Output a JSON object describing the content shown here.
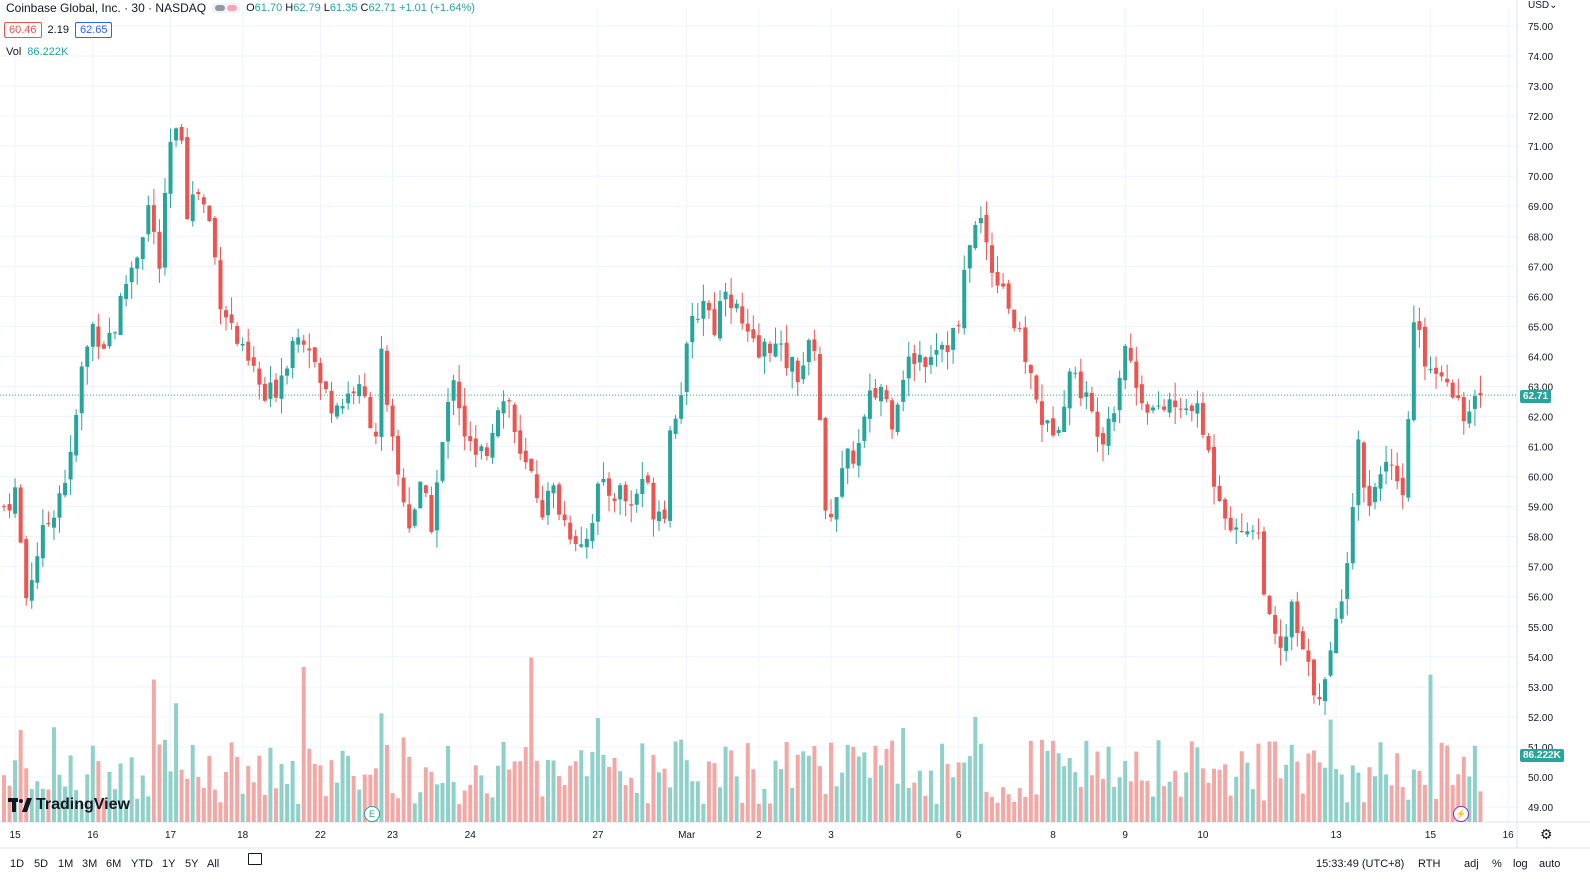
{
  "header": {
    "ticker": "Coinbase Global, Inc. · 30 · NASDAQ",
    "ohlc": {
      "o_label": "O",
      "o": "61.70",
      "h_label": "H",
      "h": "62.79",
      "l_label": "L",
      "l": "61.35",
      "c_label": "C",
      "c": "62.71",
      "change": "+1.01 (+1.64%)"
    },
    "bid": "60.46",
    "spread": "2.19",
    "ask": "62.65",
    "vol_label": "Vol",
    "vol_value": "86.222K"
  },
  "currency": "USD",
  "timeframes": [
    "1D",
    "5D",
    "1M",
    "3M",
    "6M",
    "YTD",
    "1Y",
    "5Y",
    "All"
  ],
  "bottom_right": {
    "clock": "15:33:49 (UTC+8)",
    "session": "RTH",
    "adj": "adj",
    "percent": "%",
    "log": "log",
    "auto": "auto"
  },
  "colors": {
    "up": "#26a69a",
    "down": "#ef5350",
    "up_vol": "#8fd0c8",
    "down_vol": "#f4a8a6",
    "price_line": "#26a69a",
    "vol_badge": "#26a69a"
  },
  "chart_data": {
    "type": "candlestick",
    "title": "Coinbase Global, Inc. · 30 · NASDAQ",
    "y_axis_ticks": [
      "49.00",
      "50.00",
      "51.00",
      "52.00",
      "53.00",
      "54.00",
      "55.00",
      "56.00",
      "57.00",
      "58.00",
      "59.00",
      "60.00",
      "61.00",
      "62.00",
      "63.00",
      "64.00",
      "65.00",
      "66.00",
      "67.00",
      "68.00",
      "69.00",
      "70.00",
      "71.00",
      "72.00",
      "73.00",
      "74.00",
      "75.00"
    ],
    "ylim": [
      48.5,
      75.6
    ],
    "x_tick_labels": [
      {
        "label": "15",
        "i": 2
      },
      {
        "label": "16",
        "i": 16
      },
      {
        "label": "17",
        "i": 30
      },
      {
        "label": "18",
        "i": 43
      },
      {
        "label": "22",
        "i": 57
      },
      {
        "label": "23",
        "i": 70
      },
      {
        "label": "24",
        "i": 84
      },
      {
        "label": "27",
        "i": 107
      },
      {
        "label": "Mar",
        "i": 123
      },
      {
        "label": "2",
        "i": 136
      },
      {
        "label": "3",
        "i": 149
      },
      {
        "label": "6",
        "i": 172
      },
      {
        "label": "8",
        "i": 189
      },
      {
        "label": "9",
        "i": 202
      },
      {
        "label": "10",
        "i": 216
      },
      {
        "label": "13",
        "i": 240
      },
      {
        "label": "15",
        "i": 257
      },
      {
        "label": "16",
        "i": 271
      }
    ],
    "last_price": 62.71,
    "last_price_label": "62.71",
    "volume_last": "86.222K",
    "events": [
      {
        "label": "E",
        "i": 67
      }
    ],
    "candle_count": 267,
    "price_anchors": [
      [
        0,
        59.0
      ],
      [
        2,
        59.5
      ],
      [
        4,
        56.0
      ],
      [
        6,
        57.5
      ],
      [
        9,
        59.0
      ],
      [
        12,
        60.5
      ],
      [
        14,
        63.5
      ],
      [
        16,
        65.0
      ],
      [
        18,
        64.5
      ],
      [
        20,
        65.0
      ],
      [
        22,
        66.5
      ],
      [
        24,
        67.5
      ],
      [
        26,
        69.0
      ],
      [
        28,
        67.0
      ],
      [
        30,
        71.0
      ],
      [
        32,
        71.5
      ],
      [
        33,
        69.0
      ],
      [
        35,
        69.5
      ],
      [
        37,
        68.5
      ],
      [
        39,
        66.0
      ],
      [
        41,
        65.0
      ],
      [
        43,
        64.0
      ],
      [
        45,
        63.5
      ],
      [
        47,
        62.5
      ],
      [
        49,
        63.0
      ],
      [
        51,
        64.0
      ],
      [
        53,
        65.0
      ],
      [
        55,
        64.5
      ],
      [
        57,
        63.0
      ],
      [
        59,
        62.5
      ],
      [
        61,
        62.5
      ],
      [
        63,
        63.0
      ],
      [
        65,
        62.5
      ],
      [
        67,
        61.5
      ],
      [
        68,
        64.0
      ],
      [
        69,
        62.0
      ],
      [
        71,
        60.0
      ],
      [
        73,
        58.5
      ],
      [
        75,
        59.5
      ],
      [
        77,
        58.5
      ],
      [
        79,
        61.0
      ],
      [
        81,
        63.5
      ],
      [
        83,
        61.5
      ],
      [
        85,
        60.5
      ],
      [
        87,
        61.0
      ],
      [
        89,
        62.5
      ],
      [
        91,
        62.5
      ],
      [
        93,
        60.5
      ],
      [
        95,
        60.0
      ],
      [
        97,
        59.0
      ],
      [
        99,
        59.5
      ],
      [
        101,
        58.5
      ],
      [
        103,
        58.0
      ],
      [
        105,
        58.0
      ],
      [
        107,
        59.5
      ],
      [
        109,
        59.5
      ],
      [
        111,
        59.5
      ],
      [
        113,
        59.0
      ],
      [
        115,
        60.0
      ],
      [
        117,
        59.0
      ],
      [
        119,
        59.0
      ],
      [
        120,
        61.5
      ],
      [
        122,
        63.0
      ],
      [
        124,
        65.0
      ],
      [
        126,
        66.0
      ],
      [
        128,
        65.0
      ],
      [
        130,
        66.5
      ],
      [
        132,
        65.5
      ],
      [
        134,
        64.5
      ],
      [
        136,
        64.0
      ],
      [
        138,
        64.5
      ],
      [
        140,
        64.0
      ],
      [
        143,
        63.5
      ],
      [
        146,
        64.5
      ],
      [
        147,
        62.0
      ],
      [
        148,
        58.5
      ],
      [
        150,
        59.5
      ],
      [
        152,
        60.5
      ],
      [
        154,
        61.0
      ],
      [
        156,
        62.5
      ],
      [
        158,
        63.0
      ],
      [
        160,
        62.0
      ],
      [
        162,
        63.5
      ],
      [
        164,
        64.0
      ],
      [
        166,
        64.0
      ],
      [
        168,
        64.5
      ],
      [
        170,
        64.5
      ],
      [
        172,
        65.0
      ],
      [
        174,
        68.0
      ],
      [
        176,
        68.5
      ],
      [
        178,
        67.0
      ],
      [
        180,
        66.5
      ],
      [
        182,
        65.0
      ],
      [
        184,
        64.0
      ],
      [
        186,
        62.5
      ],
      [
        188,
        61.5
      ],
      [
        190,
        62.0
      ],
      [
        192,
        63.5
      ],
      [
        194,
        63.0
      ],
      [
        196,
        62.0
      ],
      [
        198,
        61.5
      ],
      [
        200,
        62.5
      ],
      [
        202,
        64.5
      ],
      [
        204,
        63.0
      ],
      [
        206,
        62.5
      ],
      [
        208,
        62.0
      ],
      [
        210,
        62.5
      ],
      [
        212,
        62.0
      ],
      [
        214,
        62.5
      ],
      [
        216,
        61.5
      ],
      [
        218,
        60.0
      ],
      [
        220,
        59.0
      ],
      [
        222,
        58.0
      ],
      [
        224,
        58.5
      ],
      [
        226,
        58.0
      ],
      [
        228,
        55.0
      ],
      [
        230,
        54.0
      ],
      [
        232,
        55.5
      ],
      [
        234,
        54.0
      ],
      [
        236,
        53.0
      ],
      [
        238,
        53.0
      ],
      [
        240,
        55.0
      ],
      [
        242,
        57.5
      ],
      [
        244,
        61.0
      ],
      [
        246,
        59.0
      ],
      [
        248,
        60.5
      ],
      [
        250,
        60.0
      ],
      [
        252,
        59.0
      ],
      [
        254,
        65.0
      ],
      [
        256,
        64.0
      ],
      [
        258,
        63.5
      ],
      [
        260,
        63.5
      ],
      [
        262,
        62.5
      ],
      [
        264,
        62.0
      ],
      [
        266,
        62.71
      ]
    ]
  }
}
